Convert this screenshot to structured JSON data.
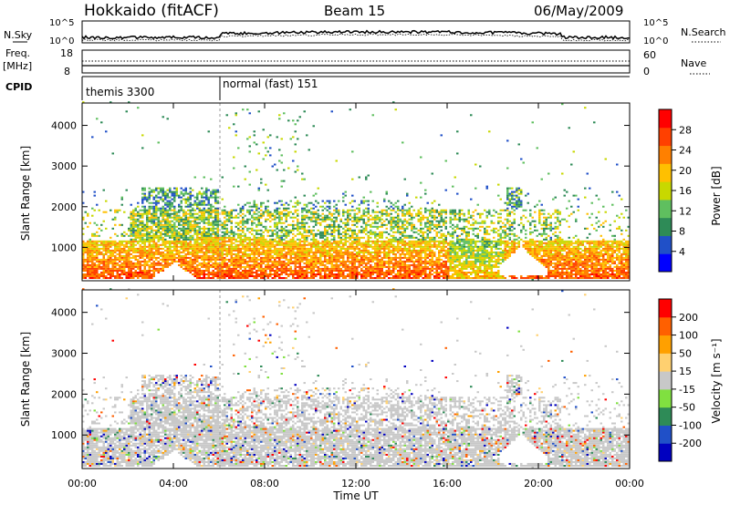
{
  "header": {
    "station": "Hokkaido (fitACF)",
    "beam": "Beam 15",
    "date": "06/May/2009"
  },
  "strips": {
    "nsky_label": "N.Sky",
    "nsearch_label": "N.Search",
    "noise_ticks": [
      "10^5",
      "10^0"
    ],
    "noise_ticks_right": [
      "10^5",
      "10^0"
    ],
    "freq_label": "Freq.",
    "freq_unit": "[MHz]",
    "freq_ticks": [
      "18",
      "8"
    ],
    "nave_label": "Nave",
    "nave_ticks": [
      "60",
      "0"
    ],
    "cpid_label": "CPID",
    "cpid_segments": [
      "themis 3300",
      "normal (fast) 151"
    ]
  },
  "axes": {
    "y_label": "Slant Range [km]",
    "x_label": "Time UT",
    "x_ticks": [
      "00:00",
      "04:00",
      "08:00",
      "12:00",
      "16:00",
      "20:00",
      "00:00"
    ],
    "y_ticks": [
      "4000",
      "3000",
      "2000",
      "1000"
    ],
    "power_label": "Power [dB]",
    "power_ticks": [
      "28",
      "24",
      "20",
      "16",
      "12",
      "8",
      "4"
    ],
    "velocity_label": "Velocity [m s⁻¹]",
    "velocity_ticks": [
      "200",
      "100",
      "50",
      "15",
      "-15",
      "-50",
      "-100",
      "-200"
    ]
  },
  "chart_data": [
    {
      "type": "heatmap",
      "name": "power",
      "x_range_hours": [
        0,
        24
      ],
      "y_range_km": [
        180,
        4550
      ],
      "colorbar_colors": [
        "#0000ff",
        "#2050c8",
        "#2e8b57",
        "#5fbf5f",
        "#c8d800",
        "#ffc000",
        "#ff8000",
        "#ff4000",
        "#ff0000"
      ],
      "colorbar_ticks_db": [
        4,
        8,
        12,
        16,
        20,
        24,
        28
      ],
      "colorbar_range_db": [
        0,
        32
      ]
    },
    {
      "type": "heatmap",
      "name": "velocity",
      "x_range_hours": [
        0,
        24
      ],
      "y_range_km": [
        180,
        4550
      ],
      "colorbar_colors": [
        "#ff0000",
        "#ff6000",
        "#ffa000",
        "#ffd070",
        "#c8c8c8",
        "#80e040",
        "#2e8b57",
        "#2050c8",
        "#0000c0"
      ],
      "colorbar_ticks_ms": [
        -200,
        -100,
        -50,
        -15,
        15,
        50,
        100,
        200
      ],
      "ground_scatter_color": "#c8c8c8"
    },
    {
      "type": "line",
      "name": "noise",
      "series": [
        {
          "name": "N.Sky"
        },
        {
          "name": "N.Search"
        }
      ]
    }
  ]
}
